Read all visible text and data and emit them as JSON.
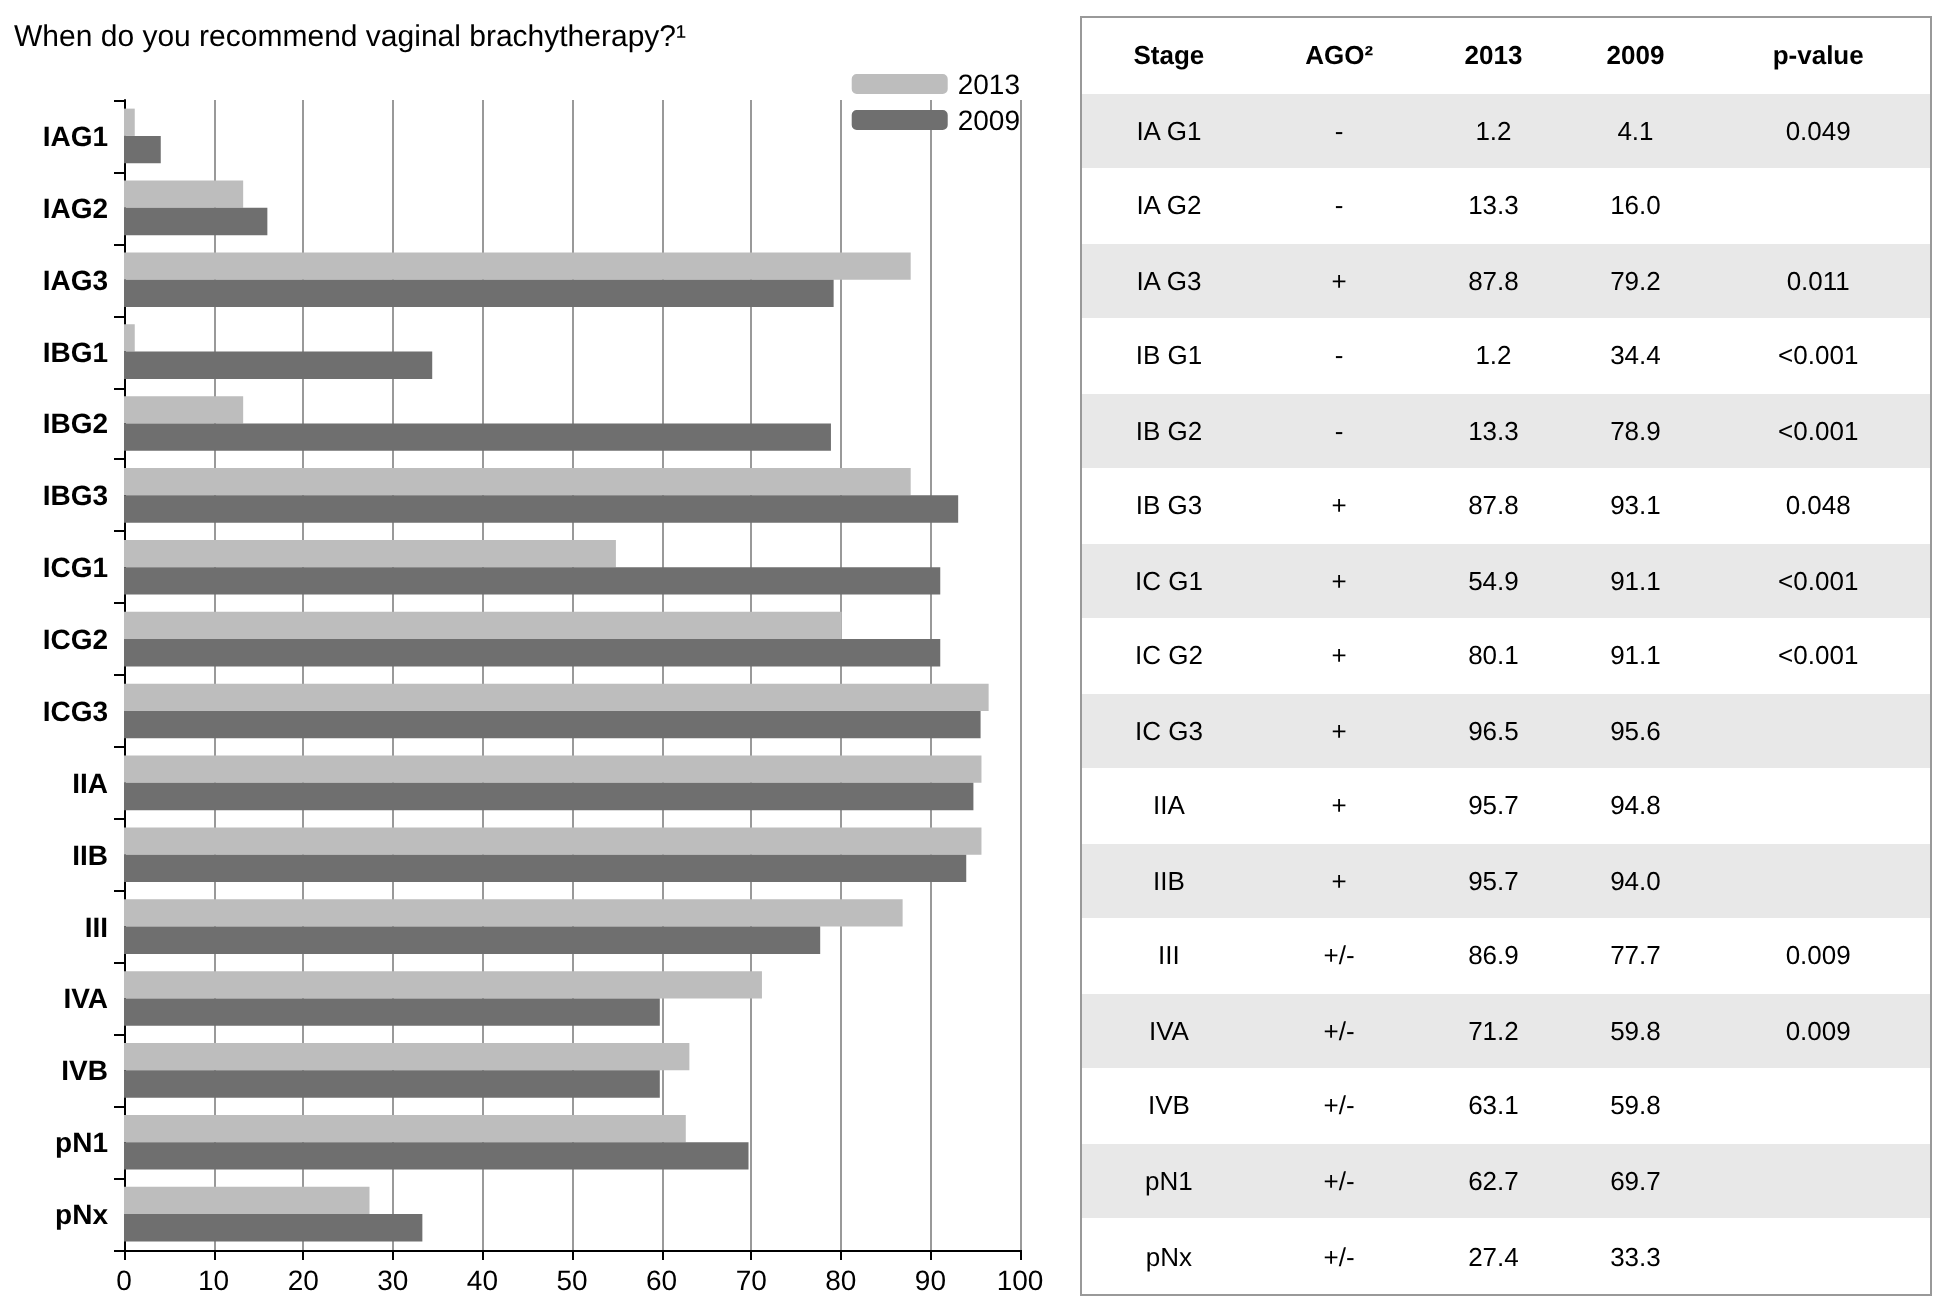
{
  "chart_data": [
    {
      "type": "bar",
      "orientation": "horizontal",
      "title": "When do you recommend vaginal brachytherapy?¹",
      "categories": [
        "IAG1",
        "IAG2",
        "IAG3",
        "IBG1",
        "IBG2",
        "IBG3",
        "ICG1",
        "ICG2",
        "ICG3",
        "IIA",
        "IIB",
        "III",
        "IVA",
        "IVB",
        "pN1",
        "pNx"
      ],
      "series": [
        {
          "name": "2013",
          "color": "#bdbdbd",
          "values": [
            1.2,
            13.3,
            87.8,
            1.2,
            13.3,
            87.8,
            54.9,
            80.1,
            96.5,
            95.7,
            95.7,
            86.9,
            71.2,
            63.1,
            62.7,
            27.4
          ]
        },
        {
          "name": "2009",
          "color": "#6f6f6f",
          "values": [
            4.1,
            16.0,
            79.2,
            34.4,
            78.9,
            93.1,
            91.1,
            91.1,
            95.6,
            94.8,
            94.0,
            77.7,
            59.8,
            59.8,
            69.7,
            33.3
          ]
        }
      ],
      "xlim": [
        0,
        100
      ],
      "xticks": [
        0,
        10,
        20,
        30,
        40,
        50,
        60,
        70,
        80,
        90,
        100
      ],
      "grid": "x",
      "legend": "top right"
    },
    {
      "type": "other",
      "categories": [
        "Stage",
        "AGO²",
        "2013",
        "2009",
        "p-value"
      ],
      "annotations": [
        "IA G1",
        "-",
        "1.2",
        "4.1",
        "0.049",
        "IA G2",
        "-",
        "13.3",
        "16.0",
        null,
        "IA G3",
        "+",
        "87.8",
        "79.2",
        "0.011",
        "IB G1",
        "-",
        "1.2",
        "34.4",
        "<0.001",
        "IB G2",
        "-",
        "13.3",
        "78.9",
        "<0.001",
        "IB G3",
        "+",
        "87.8",
        "93.1",
        "0.048",
        "IC G1",
        "+",
        "54.9",
        "91.1",
        "<0.001",
        "IC G2",
        "+",
        "80.1",
        "91.1",
        "<0.001",
        "IC G3",
        "+",
        "96.5",
        "95.6",
        null,
        "IIA",
        "+",
        "95.7",
        "94.8",
        null,
        "IIB",
        "+",
        "95.7",
        "94.0",
        null,
        "III",
        "+/-",
        "86.9",
        "77.7",
        "0.009",
        "IVA",
        "+/-",
        "71.2",
        "59.8",
        "0.009",
        "IVB",
        "+/-",
        "63.1",
        "59.8",
        null,
        "pN1",
        "+/-",
        "62.7",
        "69.7",
        null,
        "pNx",
        "+/-",
        "27.4",
        "33.3",
        null
      ]
    }
  ]
}
